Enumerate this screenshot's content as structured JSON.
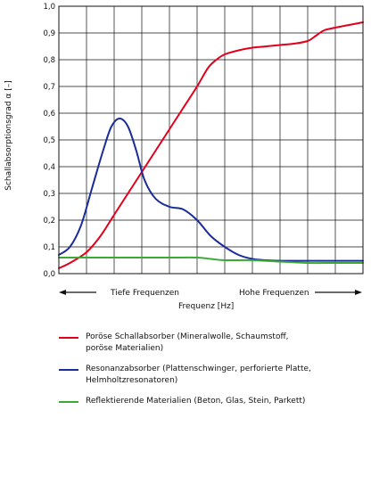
{
  "chart_data": {
    "type": "line",
    "ylabel": "Schallabsorptionsgrad α [–]",
    "xlabel": "Frequenz  [Hz]",
    "ylim": [
      0,
      1.0
    ],
    "y_ticks": [
      "0,0",
      "0,1",
      "0,2",
      "0,3",
      "0,4",
      "0,5",
      "0,6",
      "0,7",
      "0,8",
      "0,9",
      "1,0"
    ],
    "x_range": [
      0,
      11
    ],
    "x_gridlines": 11,
    "grid": true,
    "x_annotations": {
      "low": "Tiefe Frequenzen",
      "high": "Hohe Frequenzen"
    },
    "series": [
      {
        "key": "porous",
        "color": "#e3001b",
        "points": [
          [
            0,
            0.02
          ],
          [
            0.4,
            0.04
          ],
          [
            1,
            0.08
          ],
          [
            1.5,
            0.14
          ],
          [
            2,
            0.22
          ],
          [
            2.5,
            0.3
          ],
          [
            3,
            0.38
          ],
          [
            3.5,
            0.46
          ],
          [
            4,
            0.54
          ],
          [
            4.5,
            0.62
          ],
          [
            5,
            0.7
          ],
          [
            5.4,
            0.77
          ],
          [
            5.7,
            0.8
          ],
          [
            6,
            0.82
          ],
          [
            6.5,
            0.835
          ],
          [
            7,
            0.845
          ],
          [
            7.5,
            0.85
          ],
          [
            8,
            0.855
          ],
          [
            8.5,
            0.86
          ],
          [
            9,
            0.87
          ],
          [
            9.3,
            0.89
          ],
          [
            9.6,
            0.91
          ],
          [
            10,
            0.92
          ],
          [
            10.5,
            0.93
          ],
          [
            11,
            0.94
          ]
        ]
      },
      {
        "key": "resonance",
        "color": "#1a2b9a",
        "points": [
          [
            0,
            0.07
          ],
          [
            0.4,
            0.1
          ],
          [
            0.8,
            0.18
          ],
          [
            1.2,
            0.32
          ],
          [
            1.6,
            0.46
          ],
          [
            1.9,
            0.55
          ],
          [
            2.2,
            0.58
          ],
          [
            2.5,
            0.55
          ],
          [
            2.8,
            0.46
          ],
          [
            3.1,
            0.35
          ],
          [
            3.5,
            0.28
          ],
          [
            4,
            0.25
          ],
          [
            4.5,
            0.24
          ],
          [
            5,
            0.2
          ],
          [
            5.5,
            0.14
          ],
          [
            6,
            0.1
          ],
          [
            6.5,
            0.07
          ],
          [
            7,
            0.055
          ],
          [
            7.5,
            0.05
          ],
          [
            8,
            0.048
          ],
          [
            9,
            0.048
          ],
          [
            10,
            0.048
          ],
          [
            11,
            0.048
          ]
        ]
      },
      {
        "key": "reflective",
        "color": "#3aaa35",
        "points": [
          [
            0,
            0.06
          ],
          [
            1,
            0.06
          ],
          [
            2,
            0.06
          ],
          [
            3,
            0.06
          ],
          [
            4,
            0.06
          ],
          [
            5,
            0.06
          ],
          [
            5.5,
            0.055
          ],
          [
            6,
            0.05
          ],
          [
            7,
            0.05
          ],
          [
            8,
            0.045
          ],
          [
            9,
            0.04
          ],
          [
            10,
            0.04
          ],
          [
            11,
            0.04
          ]
        ]
      }
    ]
  },
  "legend": {
    "items": [
      {
        "color": "#e3001b",
        "line1": "Poröse Schallabsorber (Mineralwolle, Schaumstoff,",
        "line2": "poröse Materialien)"
      },
      {
        "color": "#1a2b9a",
        "line1": "Resonanzabsorber (Plattenschwinger, perforierte Platte,",
        "line2": "Helmholtzresonatoren)"
      },
      {
        "color": "#3aaa35",
        "line1": "Reflektierende Materialien (Beton, Glas, Stein, Parkett)",
        "line2": ""
      }
    ]
  }
}
